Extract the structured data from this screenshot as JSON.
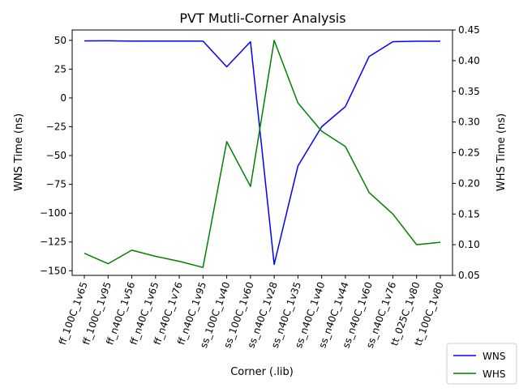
{
  "chart_data": {
    "type": "line",
    "title": "PVT Mutli-Corner Analysis",
    "xlabel": "Corner (.lib)",
    "ylabel_left": "WNS Time (ns)",
    "ylabel_right": "WHS Time (ns)",
    "categories": [
      "ff_100C_1v65",
      "ff_100C_1v95",
      "ff_n40C_1v56",
      "ff_n40C_1v65",
      "ff_n40C_1v76",
      "ff_n40C_1v95",
      "ss_100C_1v40",
      "ss_100C_1v60",
      "ss_n40C_1v28",
      "ss_n40C_1v35",
      "ss_n40C_1v40",
      "ss_n40C_1v44",
      "ss_n40C_1v60",
      "ss_n40C_1v76",
      "tt_025C_1v80",
      "tt_100C_1v80"
    ],
    "ylim_left": [
      -154,
      59
    ],
    "ylim_right": [
      0.05,
      0.45
    ],
    "yticks_left": [
      50,
      25,
      0,
      -25,
      -50,
      -75,
      -100,
      -125,
      -150
    ],
    "yticks_left_labels": [
      "50",
      "25",
      "0",
      "−25",
      "−50",
      "−75",
      "−100",
      "−125",
      "−150"
    ],
    "yticks_right": [
      0.45,
      0.4,
      0.35,
      0.3,
      0.25,
      0.2,
      0.15,
      0.1,
      0.05
    ],
    "yticks_right_labels": [
      "0.45",
      "0.40",
      "0.35",
      "0.30",
      "0.25",
      "0.20",
      "0.15",
      "0.10",
      "0.05"
    ],
    "series": [
      {
        "name": "WNS",
        "axis": "left",
        "color": "#0000ff",
        "values": [
          49.5,
          49.6,
          49.3,
          49.3,
          49.4,
          49.4,
          27.0,
          48.8,
          -144.5,
          -59.0,
          -25.0,
          -7.5,
          36.0,
          48.8,
          49.2,
          49.2
        ]
      },
      {
        "name": "WHS",
        "axis": "right",
        "color": "#008000",
        "values": [
          0.086,
          0.069,
          0.091,
          0.081,
          0.073,
          0.063,
          0.268,
          0.195,
          0.433,
          0.331,
          0.285,
          0.26,
          0.185,
          0.15,
          0.1,
          0.104
        ]
      }
    ],
    "legend": [
      "WNS",
      "WHS"
    ],
    "legend_position": "bottom-right"
  }
}
